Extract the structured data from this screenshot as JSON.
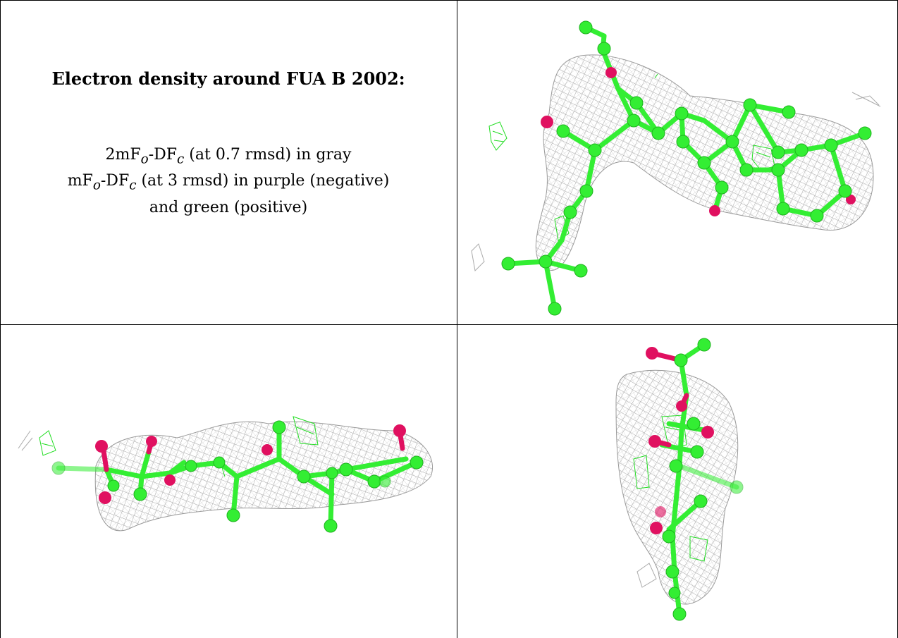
{
  "caption": {
    "title": "Electron density around FUA B 2002:",
    "line1_pre": "2mF",
    "line1_sub1": "o",
    "line1_mid": "-DF",
    "line1_sub2": "c",
    "line1_post": " (at 0.7 rmsd) in gray",
    "line2_pre": "mF",
    "line2_sub1": "o",
    "line2_mid": "-DF",
    "line2_sub2": "c",
    "line2_post": " (at 3 rmsd) in purple (negative)",
    "line3": "and green (positive)"
  },
  "colors": {
    "carbon": "#33ee33",
    "oxygen": "#e01060",
    "mesh_2fofc": "#a8a8a8",
    "mesh_positive": "#22dd22",
    "grid_line": "#000000"
  },
  "panels": [
    {
      "name": "view-top-right",
      "view": "face-on"
    },
    {
      "name": "view-bottom-left",
      "view": "side-on"
    },
    {
      "name": "view-bottom-right",
      "view": "end-on"
    }
  ]
}
